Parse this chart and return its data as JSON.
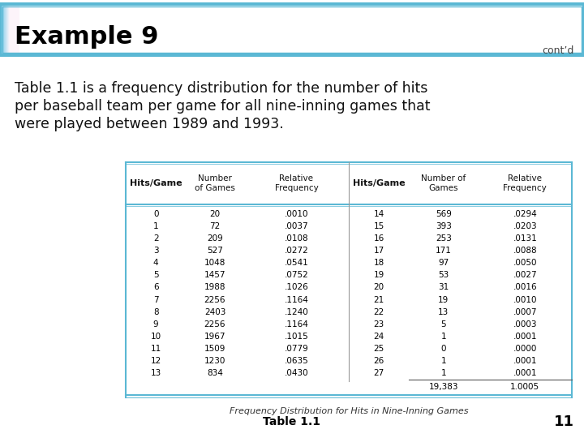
{
  "title": "Example 9",
  "contd": "cont’d",
  "body_line1": "Table 1.1 is a frequency distribution for the number of hits",
  "body_line2": "per baseball team per game for all nine-inning games that",
  "body_line3": "were played between 1989 and 1993.",
  "col_headers_left": [
    "Hits/Game",
    "Number\nof Games",
    "Relative\nFrequency"
  ],
  "col_headers_right": [
    "Hits/Game",
    "Number of\nGames",
    "Relative\nFrequency"
  ],
  "table_caption": "Frequency Distribution for Hits in Nine-Inning Games",
  "table_label": "Table 1.1",
  "page_number": "11",
  "left_data": [
    [
      "0",
      "20",
      ".0010"
    ],
    [
      "1",
      "72",
      ".0037"
    ],
    [
      "2",
      "209",
      ".0108"
    ],
    [
      "3",
      "527",
      ".0272"
    ],
    [
      "4",
      "1048",
      ".0541"
    ],
    [
      "5",
      "1457",
      ".0752"
    ],
    [
      "6",
      "1988",
      ".1026"
    ],
    [
      "7",
      "2256",
      ".1164"
    ],
    [
      "8",
      "2403",
      ".1240"
    ],
    [
      "9",
      "2256",
      ".1164"
    ],
    [
      "10",
      "1967",
      ".1015"
    ],
    [
      "11",
      "1509",
      ".0779"
    ],
    [
      "12",
      "1230",
      ".0635"
    ],
    [
      "13",
      "834",
      ".0430"
    ]
  ],
  "right_data": [
    [
      "14",
      "569",
      ".0294"
    ],
    [
      "15",
      "393",
      ".0203"
    ],
    [
      "16",
      "253",
      ".0131"
    ],
    [
      "17",
      "171",
      ".0088"
    ],
    [
      "18",
      "97",
      ".0050"
    ],
    [
      "19",
      "53",
      ".0027"
    ],
    [
      "20",
      "31",
      ".0016"
    ],
    [
      "21",
      "19",
      ".0010"
    ],
    [
      "22",
      "13",
      ".0007"
    ],
    [
      "23",
      "5",
      ".0003"
    ],
    [
      "24",
      "1",
      ".0001"
    ],
    [
      "25",
      "0",
      ".0000"
    ],
    [
      "26",
      "1",
      ".0001"
    ],
    [
      "27",
      "1",
      ".0001"
    ]
  ],
  "total_games": "19,383",
  "total_freq": "1.0005",
  "bg_color": "#ffffff",
  "banner_color_left": "#6ec6e8",
  "banner_color_right": "#e8f6fb",
  "banner_border_color": "#5bb8d4",
  "title_color": "#000000",
  "body_text_color": "#111111",
  "table_border_color": "#5bb8d4"
}
